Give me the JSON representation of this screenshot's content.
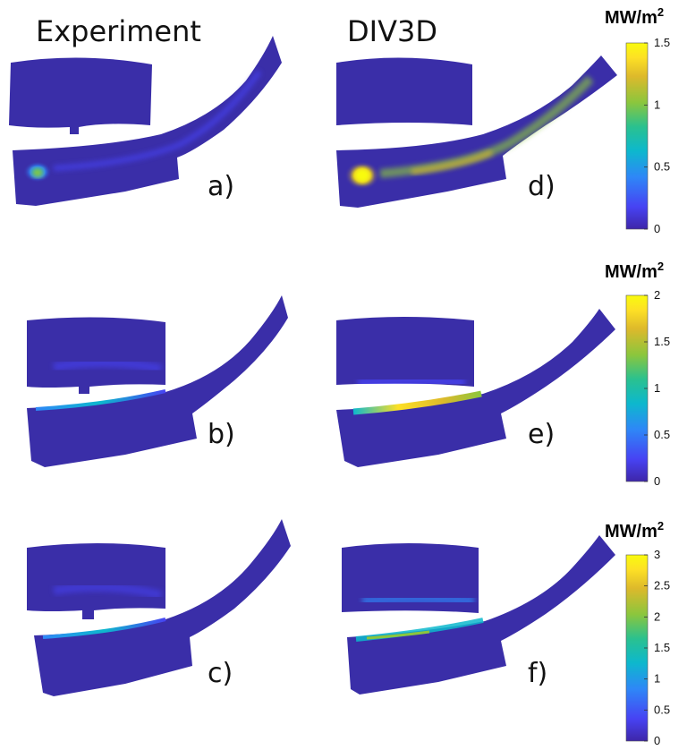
{
  "columns": [
    "Experiment",
    "DIV3D"
  ],
  "panels": [
    {
      "label": "a)",
      "colorbar": 0,
      "max_fraction": 0.8
    },
    {
      "label": "b)",
      "colorbar": 1,
      "max_fraction": 0.55
    },
    {
      "label": "c)",
      "colorbar": 2,
      "max_fraction": 0.35
    },
    {
      "label": "d)",
      "colorbar": 0,
      "max_fraction": 1.0
    },
    {
      "label": "e)",
      "colorbar": 1,
      "max_fraction": 1.0
    },
    {
      "label": "f)",
      "colorbar": 2,
      "max_fraction": 0.75
    }
  ],
  "colorbars": [
    {
      "unit": "MW/m",
      "unit_sup": "2",
      "ticks": [
        "0",
        "0.5",
        "1",
        "1.5"
      ],
      "max": 1.5
    },
    {
      "unit": "MW/m",
      "unit_sup": "2",
      "ticks": [
        "0",
        "0.5",
        "1",
        "1.5",
        "2"
      ],
      "max": 2
    },
    {
      "unit": "MW/m",
      "unit_sup": "2",
      "ticks": [
        "0",
        "0.5",
        "1",
        "1.5",
        "2",
        "2.5",
        "3"
      ],
      "max": 3
    }
  ],
  "colors": {
    "background": "#3a2ea8",
    "colormap": [
      "#3e26a8",
      "#4743f3",
      "#2e87f7",
      "#0db8cd",
      "#2ac18f",
      "#8bc63d",
      "#ddb92b",
      "#fde025",
      "#f9fb0e"
    ]
  }
}
